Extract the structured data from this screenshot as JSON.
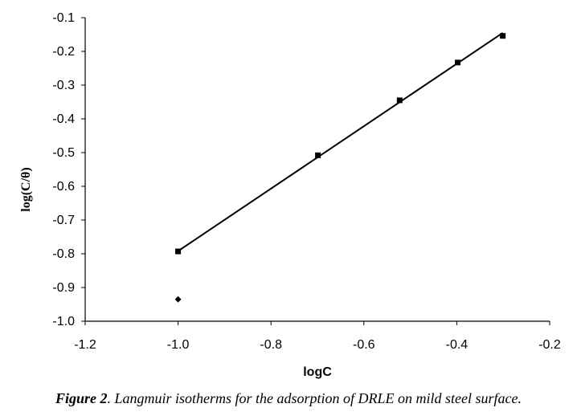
{
  "chart_data": {
    "type": "scatter",
    "xlabel": "logC",
    "ylabel": "log(C/θ)",
    "xlim": [
      -1.2,
      -0.2
    ],
    "ylim": [
      -1.0,
      -0.1
    ],
    "x_ticks": [
      "-1.2",
      "-1.0",
      "-0.8",
      "-0.6",
      "-0.4",
      "-0.2"
    ],
    "y_ticks": [
      "-0.1",
      "-0.2",
      "-0.3",
      "-0.4",
      "-0.5",
      "-0.6",
      "-0.7",
      "-0.8",
      "-0.9",
      "-1.0"
    ],
    "grid": false,
    "series": [
      {
        "marker": "square",
        "color": "#000000",
        "points": [
          {
            "x": -1.0,
            "y": -0.793
          },
          {
            "x": -0.699,
            "y": -0.508
          },
          {
            "x": -0.523,
            "y": -0.345
          },
          {
            "x": -0.398,
            "y": -0.233
          },
          {
            "x": -0.301,
            "y": -0.154
          }
        ]
      },
      {
        "marker": "diamond",
        "color": "#000000",
        "points": [
          {
            "x": -1.0,
            "y": -0.935
          }
        ]
      }
    ],
    "trendline": {
      "x_start": -1.0,
      "y_start": -0.792,
      "x_end": -0.301,
      "y_end": -0.145
    }
  },
  "caption": {
    "label": "Figure 2",
    "text": ". Langmuir isotherms for the adsorption of DRLE on mild steel surface."
  }
}
